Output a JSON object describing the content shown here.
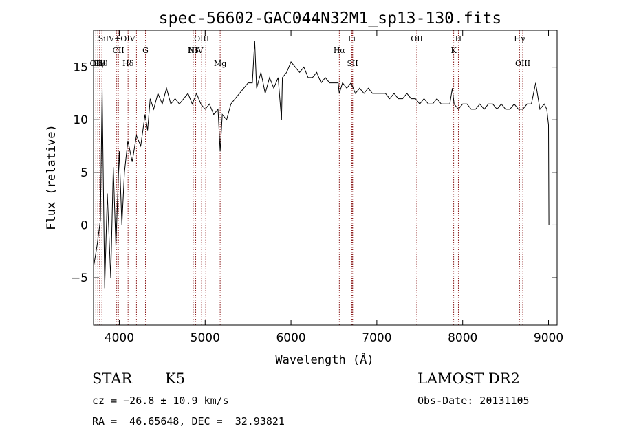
{
  "chart_data": {
    "type": "line",
    "title": "spec-56602-GAC044N32M1_sp13-130.fits",
    "xlabel": "Wavelength (Å)",
    "ylabel": "Flux (relative)",
    "xlim": [
      3700,
      9100
    ],
    "ylim": [
      -9.5,
      18.5
    ],
    "xticks": [
      4000,
      5000,
      6000,
      7000,
      8000,
      9000
    ],
    "yticks": [
      -5,
      0,
      5,
      10,
      15
    ],
    "grid": false,
    "series": [
      {
        "x": [
          3700,
          3740,
          3780,
          3800,
          3830,
          3860,
          3900,
          3930,
          3960,
          4000,
          4030,
          4060,
          4100,
          4150,
          4200,
          4250,
          4300,
          4330,
          4360,
          4400,
          4450,
          4500,
          4550,
          4600,
          4650,
          4700,
          4750,
          4800,
          4850,
          4900,
          4950,
          5000,
          5050,
          5100,
          5150,
          5175,
          5200,
          5250,
          5300,
          5350,
          5400,
          5450,
          5500,
          5550,
          5577,
          5600,
          5650,
          5700,
          5750,
          5800,
          5850,
          5890,
          5900,
          5950,
          6000,
          6050,
          6100,
          6150,
          6200,
          6250,
          6300,
          6350,
          6400,
          6450,
          6500,
          6550,
          6563,
          6600,
          6650,
          6700,
          6750,
          6800,
          6850,
          6900,
          6950,
          7000,
          7050,
          7100,
          7150,
          7200,
          7250,
          7300,
          7350,
          7400,
          7450,
          7500,
          7550,
          7600,
          7650,
          7700,
          7750,
          7800,
          7850,
          7880,
          7900,
          7950,
          8000,
          8050,
          8100,
          8150,
          8200,
          8250,
          8300,
          8350,
          8400,
          8450,
          8500,
          8550,
          8600,
          8650,
          8700,
          8750,
          8800,
          8850,
          8900,
          8950,
          8980,
          9000,
          9005
        ],
        "y": [
          -4.0,
          -2.0,
          0.5,
          13.0,
          -6.0,
          3.0,
          -5.0,
          5.5,
          -2.0,
          7.0,
          0.0,
          5.0,
          8.0,
          6.0,
          8.5,
          7.5,
          10.5,
          9.0,
          12.0,
          11.0,
          12.5,
          11.5,
          13.0,
          11.5,
          12.0,
          11.5,
          12.0,
          12.5,
          11.5,
          12.5,
          11.5,
          11.0,
          11.5,
          10.5,
          11.0,
          7.0,
          10.5,
          10.0,
          11.5,
          12.0,
          12.5,
          13.0,
          13.5,
          13.5,
          17.5,
          13.0,
          14.5,
          12.5,
          14.0,
          13.0,
          14.0,
          10.0,
          14.0,
          14.5,
          15.5,
          15.0,
          14.5,
          15.0,
          14.0,
          14.0,
          14.5,
          13.5,
          14.0,
          13.5,
          13.5,
          13.5,
          12.5,
          13.5,
          13.0,
          13.5,
          12.5,
          13.0,
          12.5,
          13.0,
          12.5,
          12.5,
          12.5,
          12.5,
          12.0,
          12.5,
          12.0,
          12.0,
          12.5,
          12.0,
          12.0,
          11.5,
          12.0,
          11.5,
          11.5,
          12.0,
          11.5,
          11.5,
          11.5,
          13.0,
          11.5,
          11.0,
          11.5,
          11.5,
          11.0,
          11.0,
          11.5,
          11.0,
          11.5,
          11.5,
          11.0,
          11.5,
          11.0,
          11.0,
          11.5,
          11.0,
          11.0,
          11.5,
          11.5,
          13.5,
          11.0,
          11.5,
          11.0,
          9.5,
          0.0
        ]
      }
    ],
    "line_markers": [
      {
        "wl": 3727,
        "label": "OII",
        "row": 3
      },
      {
        "wl": 3750,
        "label": "Hη",
        "row": 3
      },
      {
        "wl": 3771,
        "label": "Hθ",
        "row": 3
      },
      {
        "wl": 3798,
        "label": "Hθ",
        "row": 3
      },
      {
        "wl": 3970,
        "label": "SiIV+OIV",
        "row": 1
      },
      {
        "wl": 3990,
        "label": "CII",
        "row": 2
      },
      {
        "wl": 4102,
        "label": "Hδ",
        "row": 3
      },
      {
        "wl": 4200,
        "label": "",
        "row": 0
      },
      {
        "wl": 4305,
        "label": "G",
        "row": 2
      },
      {
        "wl": 4861,
        "label": "Hβ",
        "row": 2
      },
      {
        "wl": 4890,
        "label": "NIV",
        "row": 2
      },
      {
        "wl": 4959,
        "label": "OIII",
        "row": 1
      },
      {
        "wl": 5007,
        "label": "",
        "row": 0
      },
      {
        "wl": 5175,
        "label": "Mg",
        "row": 3
      },
      {
        "wl": 6563,
        "label": "Hα",
        "row": 2
      },
      {
        "wl": 6708,
        "label": "Li",
        "row": 1
      },
      {
        "wl": 6717,
        "label": "SII",
        "row": 3
      },
      {
        "wl": 6731,
        "label": "",
        "row": 0
      },
      {
        "wl": 7466,
        "label": "OII",
        "row": 1
      },
      {
        "wl": 7895,
        "label": "K",
        "row": 2
      },
      {
        "wl": 7950,
        "label": "H",
        "row": 1
      },
      {
        "wl": 8662,
        "label": "Hγ",
        "row": 1
      },
      {
        "wl": 8700,
        "label": "OIII",
        "row": 3
      }
    ]
  },
  "info": {
    "class_label": "STAR",
    "subclass_label": "K5",
    "survey": "LAMOST DR2",
    "cz": "cz = −26.8 ± 10.9 km/s",
    "obs_date": "Obs-Date: 20131105",
    "coords": "RA =  46.65648, DEC =  32.93821"
  },
  "colors": {
    "spectrum": "#000000",
    "marker": "#8b1a1a",
    "axis": "#000000"
  }
}
